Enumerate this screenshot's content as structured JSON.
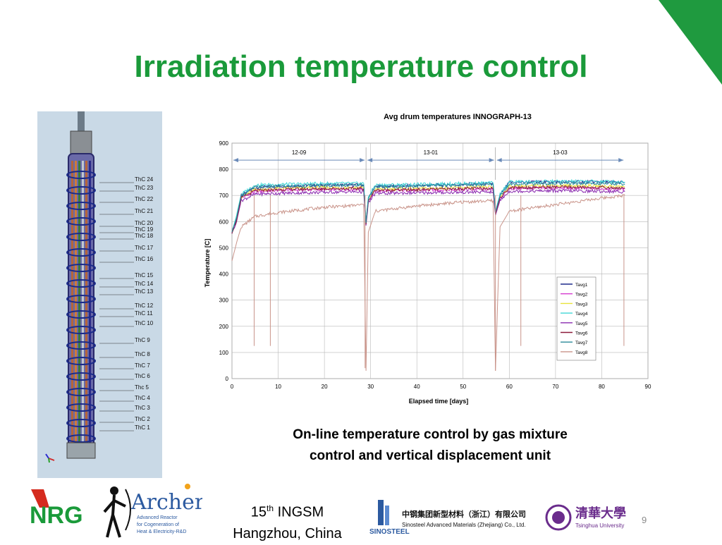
{
  "slide": {
    "title": "Irradiation temperature control",
    "caption_line1": "On-line temperature control by gas mixture",
    "caption_line2": "control and vertical displacement unit",
    "ingsm_num": "15",
    "ingsm_sup": "th",
    "ingsm_name": "INGSM",
    "location": "Hangzhou, China",
    "page_number": "9",
    "accent_color": "#1a9a3a"
  },
  "reactor_labels": [
    "ThC 24",
    "ThC 23",
    "ThC 22",
    "ThC 21",
    "ThC 20",
    "ThC 19",
    "ThC 18",
    "ThC 17",
    "ThC 16",
    "ThC 15",
    "ThC 14",
    "ThC 13",
    "ThC 12",
    "ThC 11",
    "ThC 10",
    "ThC 9",
    "ThC 8",
    "ThC 7",
    "ThC 6",
    "Thc 5",
    "ThC 4",
    "ThC 3",
    "ThC 2",
    "ThC 1"
  ],
  "logos": {
    "nrg": "NRG",
    "archer": "Archer",
    "archer_sub1": "Advanced Reactor",
    "archer_sub2": "for Cogeneration of",
    "archer_sub3": "Heat & Electricity-R&D",
    "sinosteel": "SINOSTEEL",
    "sinosteel_cn": "中钢集团新型材料（浙江）有限公司",
    "sinosteel_en": "Sinosteel Advanced Materials (Zhejiang) Co., Ltd.",
    "tsinghua_cn": "清華大學",
    "tsinghua_en": "Tsinghua University"
  },
  "chart_data": {
    "type": "line",
    "title": "Avg drum temperatures INNOGRAPH-13",
    "xlabel": "Elapsed time [days]",
    "ylabel": "Temperature [C]",
    "xlim": [
      0,
      90
    ],
    "ylim": [
      0,
      900
    ],
    "xticks": [
      0,
      10,
      20,
      30,
      40,
      50,
      60,
      70,
      80,
      90
    ],
    "yticks": [
      0,
      100,
      200,
      300,
      400,
      500,
      600,
      700,
      800,
      900
    ],
    "grid": true,
    "legend_position": "bottom-right",
    "periods": [
      {
        "label": "12-09",
        "start": 0,
        "end": 29
      },
      {
        "label": "13-01",
        "start": 29,
        "end": 57
      },
      {
        "label": "13-03",
        "start": 57,
        "end": 85
      }
    ],
    "series": [
      {
        "name": "Tavg1",
        "color": "#1f2a8c",
        "points": [
          [
            0,
            560
          ],
          [
            1,
            610
          ],
          [
            2,
            700
          ],
          [
            5,
            730
          ],
          [
            10,
            735
          ],
          [
            15,
            738
          ],
          [
            20,
            740
          ],
          [
            25,
            740
          ],
          [
            28.5,
            740
          ],
          [
            29,
            600
          ],
          [
            29.5,
            690
          ],
          [
            31,
            735
          ],
          [
            40,
            738
          ],
          [
            50,
            742
          ],
          [
            56.5,
            745
          ],
          [
            57,
            640
          ],
          [
            58,
            700
          ],
          [
            60,
            750
          ],
          [
            70,
            752
          ],
          [
            80,
            752
          ],
          [
            85,
            750
          ]
        ]
      },
      {
        "name": "Tavg2",
        "color": "#d63bd0",
        "points": [
          [
            0,
            560
          ],
          [
            1,
            615
          ],
          [
            2,
            690
          ],
          [
            5,
            715
          ],
          [
            10,
            720
          ],
          [
            15,
            722
          ],
          [
            20,
            722
          ],
          [
            25,
            724
          ],
          [
            28.5,
            724
          ],
          [
            29,
            590
          ],
          [
            29.5,
            680
          ],
          [
            31,
            718
          ],
          [
            40,
            720
          ],
          [
            50,
            722
          ],
          [
            56.5,
            724
          ],
          [
            57,
            630
          ],
          [
            58,
            690
          ],
          [
            60,
            726
          ],
          [
            70,
            728
          ],
          [
            80,
            726
          ],
          [
            85,
            724
          ]
        ]
      },
      {
        "name": "Tavg3",
        "color": "#e8e23a",
        "points": [
          [
            0,
            560
          ],
          [
            1,
            620
          ],
          [
            2,
            695
          ],
          [
            5,
            722
          ],
          [
            10,
            726
          ],
          [
            15,
            728
          ],
          [
            20,
            730
          ],
          [
            25,
            730
          ],
          [
            28.5,
            730
          ],
          [
            29,
            595
          ],
          [
            29.5,
            685
          ],
          [
            31,
            724
          ],
          [
            40,
            726
          ],
          [
            50,
            730
          ],
          [
            56.5,
            732
          ],
          [
            57,
            635
          ],
          [
            58,
            695
          ],
          [
            60,
            735
          ],
          [
            70,
            738
          ],
          [
            80,
            736
          ],
          [
            85,
            734
          ]
        ]
      },
      {
        "name": "Tavg4",
        "color": "#3fd6d6",
        "points": [
          [
            0,
            560
          ],
          [
            1,
            625
          ],
          [
            2,
            705
          ],
          [
            5,
            740
          ],
          [
            10,
            742
          ],
          [
            15,
            744
          ],
          [
            20,
            746
          ],
          [
            25,
            746
          ],
          [
            28.5,
            746
          ],
          [
            29,
            600
          ],
          [
            29.5,
            695
          ],
          [
            31,
            740
          ],
          [
            40,
            742
          ],
          [
            50,
            746
          ],
          [
            56.5,
            748
          ],
          [
            57,
            640
          ],
          [
            58,
            705
          ],
          [
            60,
            752
          ],
          [
            70,
            754
          ],
          [
            80,
            754
          ],
          [
            85,
            752
          ]
        ]
      },
      {
        "name": "Tavg5",
        "color": "#8a2bb0",
        "points": [
          [
            0,
            560
          ],
          [
            1,
            600
          ],
          [
            2,
            680
          ],
          [
            5,
            705
          ],
          [
            10,
            708
          ],
          [
            15,
            710
          ],
          [
            20,
            712
          ],
          [
            25,
            714
          ],
          [
            28.5,
            714
          ],
          [
            29,
            585
          ],
          [
            29.5,
            670
          ],
          [
            31,
            708
          ],
          [
            40,
            710
          ],
          [
            50,
            712
          ],
          [
            56.5,
            714
          ],
          [
            57,
            625
          ],
          [
            58,
            680
          ],
          [
            60,
            716
          ],
          [
            70,
            718
          ],
          [
            80,
            716
          ],
          [
            85,
            714
          ]
        ]
      },
      {
        "name": "Tavg6",
        "color": "#8b1a3a",
        "points": [
          [
            0,
            560
          ],
          [
            1,
            605
          ],
          [
            2,
            690
          ],
          [
            5,
            718
          ],
          [
            10,
            722
          ],
          [
            15,
            724
          ],
          [
            20,
            726
          ],
          [
            25,
            726
          ],
          [
            28.5,
            726
          ],
          [
            29,
            590
          ],
          [
            29.5,
            680
          ],
          [
            31,
            720
          ],
          [
            40,
            722
          ],
          [
            50,
            726
          ],
          [
            56.5,
            728
          ],
          [
            57,
            630
          ],
          [
            58,
            690
          ],
          [
            60,
            730
          ],
          [
            70,
            732
          ],
          [
            80,
            730
          ],
          [
            85,
            728
          ]
        ]
      },
      {
        "name": "Tavg7",
        "color": "#2a8a9a",
        "points": [
          [
            0,
            560
          ],
          [
            1,
            615
          ],
          [
            2,
            700
          ],
          [
            5,
            732
          ],
          [
            10,
            735
          ],
          [
            15,
            736
          ],
          [
            20,
            738
          ],
          [
            25,
            740
          ],
          [
            28.5,
            740
          ],
          [
            29,
            595
          ],
          [
            29.5,
            690
          ],
          [
            31,
            732
          ],
          [
            40,
            736
          ],
          [
            50,
            740
          ],
          [
            56.5,
            742
          ],
          [
            57,
            635
          ],
          [
            58,
            700
          ],
          [
            60,
            744
          ],
          [
            70,
            746
          ],
          [
            80,
            746
          ],
          [
            85,
            744
          ]
        ]
      },
      {
        "name": "Tavg8",
        "color": "#c9948a",
        "points": [
          [
            0,
            450
          ],
          [
            1,
            520
          ],
          [
            2,
            580
          ],
          [
            5,
            620
          ],
          [
            10,
            635
          ],
          [
            15,
            645
          ],
          [
            20,
            655
          ],
          [
            25,
            660
          ],
          [
            28.5,
            665
          ],
          [
            29,
            30
          ],
          [
            29.5,
            560
          ],
          [
            31,
            640
          ],
          [
            40,
            660
          ],
          [
            50,
            675
          ],
          [
            56.5,
            680
          ],
          [
            57,
            30
          ],
          [
            58,
            580
          ],
          [
            60,
            640
          ],
          [
            70,
            665
          ],
          [
            80,
            690
          ],
          [
            85,
            700
          ]
        ]
      }
    ],
    "dropouts": [
      {
        "x": 4.8,
        "y": 125
      },
      {
        "x": 8.3,
        "y": 125
      },
      {
        "x": 28.8,
        "y": 40
      },
      {
        "x": 57.0,
        "y": 30
      },
      {
        "x": 62.5,
        "y": 125
      },
      {
        "x": 84.8,
        "y": 125
      }
    ]
  }
}
